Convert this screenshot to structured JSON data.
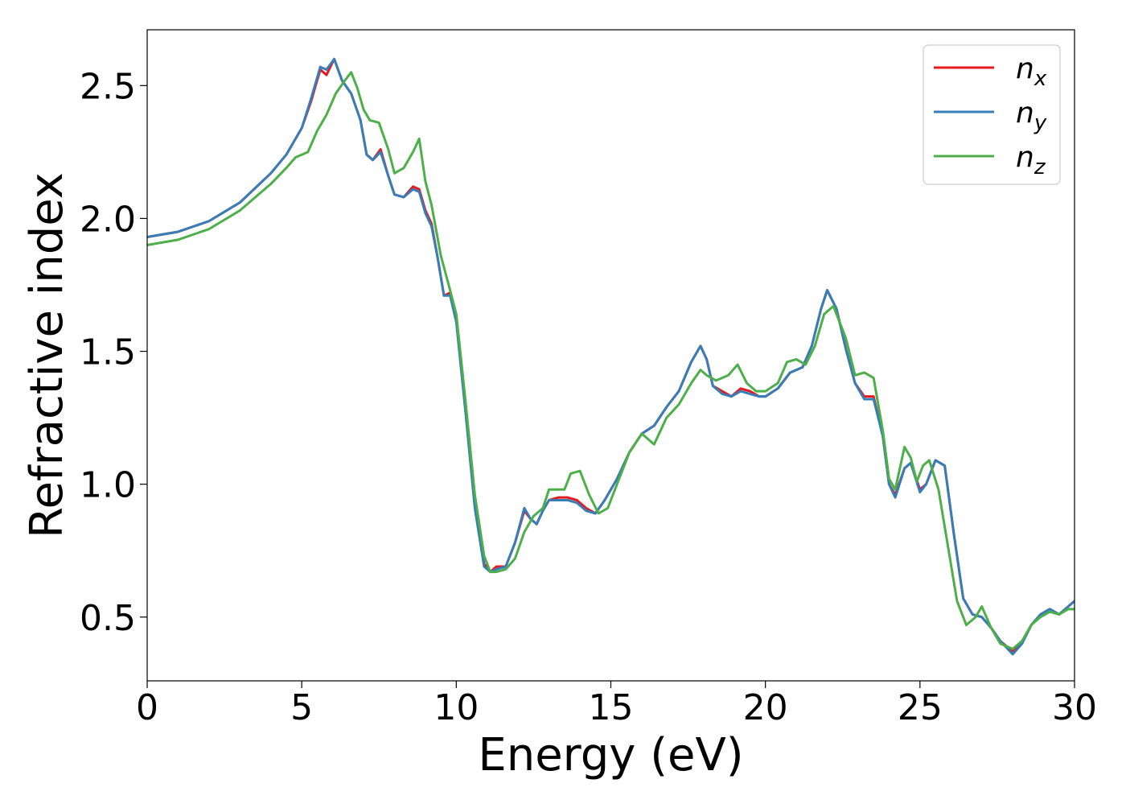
{
  "chart_data": {
    "type": "line",
    "title": "",
    "xlabel": "Energy (eV)",
    "ylabel": "Refractive index",
    "xlim": [
      0,
      30
    ],
    "ylim": [
      0.26,
      2.71
    ],
    "xticks": [
      0,
      5,
      10,
      15,
      20,
      25,
      30
    ],
    "xtick_labels": [
      "0",
      "5",
      "10",
      "15",
      "20",
      "25",
      "30"
    ],
    "yticks": [
      0.5,
      1.0,
      1.5,
      2.0,
      2.5
    ],
    "ytick_labels": [
      "0.5",
      "1.0",
      "1.5",
      "2.0",
      "2.5"
    ],
    "grid": false,
    "legend_position": "top-right",
    "series": [
      {
        "name": "n_x",
        "label_main": "n",
        "label_sub": "x",
        "color": "#e41a1c",
        "x": [
          0,
          1,
          2,
          3,
          4,
          4.5,
          5,
          5.3,
          5.6,
          5.8,
          6.05,
          6.3,
          6.6,
          6.9,
          7.1,
          7.3,
          7.55,
          7.8,
          8.0,
          8.3,
          8.6,
          8.8,
          9.0,
          9.2,
          9.4,
          9.6,
          9.8,
          10.0,
          10.3,
          10.6,
          10.9,
          11.1,
          11.3,
          11.6,
          11.9,
          12.2,
          12.4,
          12.6,
          12.8,
          13.0,
          13.3,
          13.6,
          13.9,
          14.2,
          14.5,
          14.8,
          15.2,
          15.6,
          16.0,
          16.4,
          16.8,
          17.2,
          17.6,
          17.9,
          18.1,
          18.3,
          18.6,
          18.9,
          19.2,
          19.5,
          19.8,
          20.0,
          20.4,
          20.8,
          21.2,
          21.5,
          21.8,
          22.0,
          22.3,
          22.6,
          22.9,
          23.2,
          23.5,
          23.8,
          24.0,
          24.2,
          24.5,
          24.7,
          25.0,
          25.2,
          25.5,
          25.8,
          26.1,
          26.4,
          26.7,
          27.0,
          27.3,
          27.6,
          28.0,
          28.3,
          28.6,
          28.9,
          29.2,
          29.5,
          29.8,
          30.0
        ],
        "y": [
          1.93,
          1.95,
          1.99,
          2.06,
          2.17,
          2.24,
          2.34,
          2.44,
          2.56,
          2.54,
          2.6,
          2.52,
          2.47,
          2.37,
          2.24,
          2.22,
          2.26,
          2.16,
          2.09,
          2.08,
          2.12,
          2.11,
          2.03,
          1.98,
          1.85,
          1.71,
          1.72,
          1.62,
          1.28,
          0.92,
          0.7,
          0.67,
          0.69,
          0.69,
          0.78,
          0.9,
          0.87,
          0.85,
          0.9,
          0.94,
          0.95,
          0.95,
          0.94,
          0.91,
          0.89,
          0.94,
          1.02,
          1.12,
          1.19,
          1.22,
          1.29,
          1.35,
          1.46,
          1.52,
          1.47,
          1.37,
          1.35,
          1.33,
          1.36,
          1.35,
          1.33,
          1.33,
          1.36,
          1.42,
          1.44,
          1.52,
          1.66,
          1.73,
          1.66,
          1.51,
          1.38,
          1.33,
          1.33,
          1.18,
          1.0,
          0.96,
          1.06,
          1.08,
          0.98,
          1.0,
          1.09,
          1.07,
          0.81,
          0.57,
          0.51,
          0.5,
          0.46,
          0.41,
          0.37,
          0.4,
          0.47,
          0.51,
          0.53,
          0.51,
          0.54,
          0.56
        ]
      },
      {
        "name": "n_y",
        "label_main": "n",
        "label_sub": "y",
        "color": "#377eb8",
        "x": [
          0,
          1,
          2,
          3,
          4,
          4.5,
          5,
          5.3,
          5.6,
          5.8,
          6.05,
          6.3,
          6.6,
          6.9,
          7.1,
          7.3,
          7.55,
          7.8,
          8.0,
          8.3,
          8.6,
          8.8,
          9.0,
          9.2,
          9.4,
          9.6,
          9.8,
          10.0,
          10.3,
          10.6,
          10.9,
          11.1,
          11.3,
          11.6,
          11.9,
          12.2,
          12.4,
          12.6,
          12.8,
          13.0,
          13.3,
          13.6,
          13.9,
          14.2,
          14.5,
          14.8,
          15.2,
          15.6,
          16.0,
          16.4,
          16.8,
          17.2,
          17.6,
          17.9,
          18.1,
          18.3,
          18.6,
          18.9,
          19.2,
          19.5,
          19.8,
          20.0,
          20.4,
          20.8,
          21.2,
          21.5,
          21.8,
          22.0,
          22.3,
          22.6,
          22.9,
          23.2,
          23.5,
          23.8,
          24.0,
          24.2,
          24.5,
          24.7,
          25.0,
          25.2,
          25.5,
          25.8,
          26.1,
          26.4,
          26.7,
          27.0,
          27.3,
          27.6,
          28.0,
          28.3,
          28.6,
          28.9,
          29.2,
          29.5,
          29.8,
          30.0
        ],
        "y": [
          1.93,
          1.95,
          1.99,
          2.06,
          2.17,
          2.24,
          2.34,
          2.45,
          2.57,
          2.56,
          2.6,
          2.52,
          2.47,
          2.37,
          2.24,
          2.22,
          2.25,
          2.16,
          2.09,
          2.08,
          2.11,
          2.1,
          2.02,
          1.97,
          1.85,
          1.71,
          1.71,
          1.61,
          1.27,
          0.91,
          0.69,
          0.67,
          0.68,
          0.69,
          0.78,
          0.91,
          0.87,
          0.85,
          0.9,
          0.94,
          0.94,
          0.94,
          0.93,
          0.9,
          0.89,
          0.94,
          1.02,
          1.12,
          1.19,
          1.22,
          1.29,
          1.35,
          1.46,
          1.52,
          1.47,
          1.37,
          1.34,
          1.33,
          1.35,
          1.34,
          1.33,
          1.33,
          1.36,
          1.42,
          1.44,
          1.52,
          1.66,
          1.73,
          1.66,
          1.51,
          1.38,
          1.32,
          1.32,
          1.18,
          1.0,
          0.95,
          1.06,
          1.08,
          0.97,
          1.0,
          1.09,
          1.07,
          0.81,
          0.57,
          0.51,
          0.5,
          0.46,
          0.41,
          0.36,
          0.4,
          0.47,
          0.51,
          0.53,
          0.51,
          0.54,
          0.56
        ]
      },
      {
        "name": "n_z",
        "label_main": "n",
        "label_sub": "z",
        "color": "#4daf4a",
        "x": [
          0,
          1,
          2,
          3,
          4,
          4.5,
          4.8,
          5.0,
          5.2,
          5.5,
          5.8,
          6.1,
          6.4,
          6.6,
          6.8,
          7.0,
          7.2,
          7.5,
          7.8,
          8.0,
          8.3,
          8.6,
          8.8,
          9.0,
          9.2,
          9.5,
          9.8,
          10.0,
          10.3,
          10.6,
          10.9,
          11.1,
          11.3,
          11.6,
          11.9,
          12.2,
          12.5,
          12.8,
          13.0,
          13.2,
          13.5,
          13.7,
          14.0,
          14.3,
          14.6,
          14.9,
          15.2,
          15.6,
          16.0,
          16.4,
          16.8,
          17.2,
          17.6,
          17.9,
          18.1,
          18.4,
          18.8,
          19.1,
          19.4,
          19.7,
          20.0,
          20.4,
          20.7,
          21.0,
          21.3,
          21.6,
          21.9,
          22.2,
          22.6,
          22.9,
          23.2,
          23.5,
          23.8,
          24.0,
          24.2,
          24.5,
          24.7,
          24.9,
          25.1,
          25.3,
          25.6,
          25.9,
          26.2,
          26.5,
          26.8,
          27.0,
          27.3,
          27.6,
          28.0,
          28.3,
          28.6,
          28.9,
          29.2,
          29.5,
          29.8,
          30.0
        ],
        "y": [
          1.9,
          1.92,
          1.96,
          2.03,
          2.13,
          2.19,
          2.23,
          2.24,
          2.25,
          2.33,
          2.39,
          2.47,
          2.52,
          2.55,
          2.49,
          2.41,
          2.37,
          2.36,
          2.26,
          2.17,
          2.19,
          2.25,
          2.3,
          2.14,
          2.05,
          1.86,
          1.73,
          1.64,
          1.31,
          0.96,
          0.73,
          0.67,
          0.67,
          0.68,
          0.72,
          0.82,
          0.88,
          0.91,
          0.98,
          0.98,
          0.98,
          1.04,
          1.05,
          0.96,
          0.89,
          0.91,
          1.0,
          1.12,
          1.19,
          1.15,
          1.25,
          1.3,
          1.38,
          1.43,
          1.41,
          1.39,
          1.41,
          1.45,
          1.38,
          1.35,
          1.35,
          1.38,
          1.46,
          1.47,
          1.45,
          1.52,
          1.64,
          1.67,
          1.55,
          1.41,
          1.42,
          1.4,
          1.2,
          1.02,
          0.98,
          1.14,
          1.1,
          1.01,
          1.07,
          1.09,
          0.98,
          0.77,
          0.56,
          0.47,
          0.5,
          0.54,
          0.46,
          0.4,
          0.38,
          0.41,
          0.47,
          0.5,
          0.52,
          0.51,
          0.53,
          0.53
        ]
      }
    ]
  }
}
